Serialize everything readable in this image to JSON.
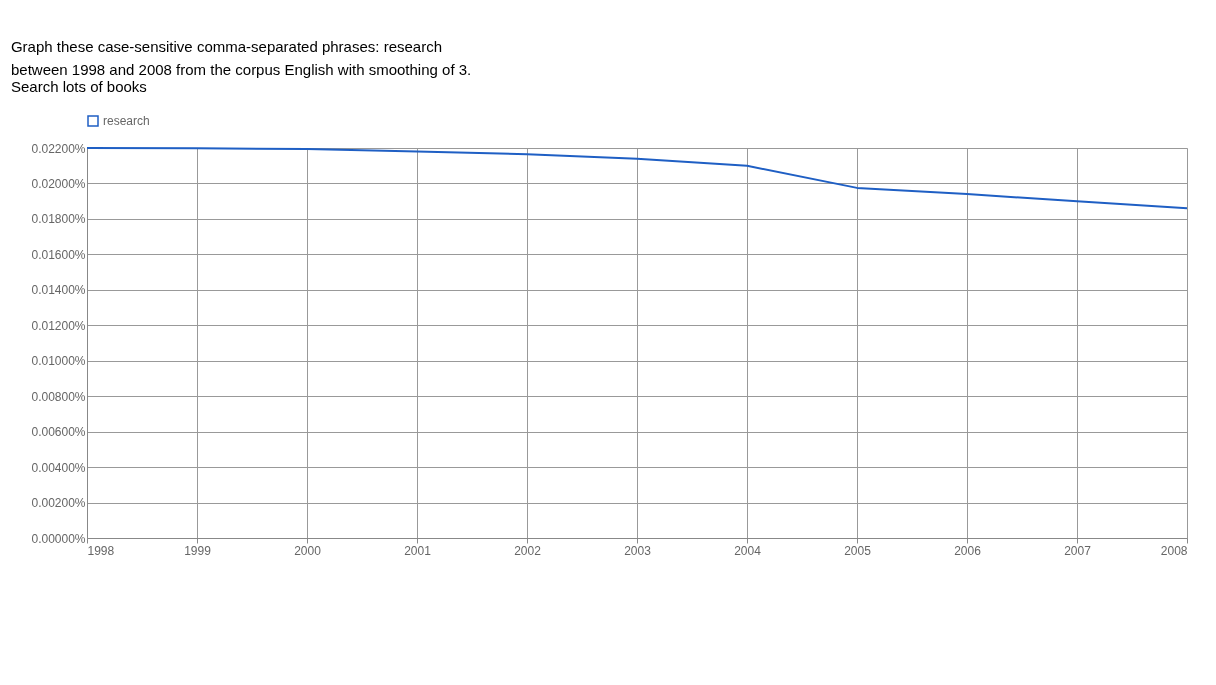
{
  "chart_data": {
    "type": "line",
    "annotations": [
      "Graph these case-sensitive comma-separated phrases: research",
      "between 1998 and 2008 from the corpus English with smoothing of 3.",
      "Search lots of books"
    ],
    "x": [
      1998,
      1999,
      2000,
      2001,
      2002,
      2003,
      2004,
      2005,
      2006,
      2007,
      2008
    ],
    "series": [
      {
        "name": "research",
        "color": "#1f5fc4",
        "values": [
          0.022,
          0.02198,
          0.02195,
          0.0218,
          0.02165,
          0.0214,
          0.021,
          0.01975,
          0.0194,
          0.019,
          0.0186
        ]
      }
    ],
    "xlim": [
      1998,
      2008
    ],
    "xticks": [
      1998,
      1999,
      2000,
      2001,
      2002,
      2003,
      2004,
      2005,
      2006,
      2007,
      2008
    ],
    "ylim": [
      0,
      0.022
    ],
    "yticks": [
      {
        "value": 0,
        "label": "0.00000%"
      },
      {
        "value": 0.002,
        "label": "0.00200%"
      },
      {
        "value": 0.004,
        "label": "0.00400%"
      },
      {
        "value": 0.006,
        "label": "0.00600%"
      },
      {
        "value": 0.008,
        "label": "0.00800%"
      },
      {
        "value": 0.01,
        "label": "0.01000%"
      },
      {
        "value": 0.012,
        "label": "0.01200%"
      },
      {
        "value": 0.014,
        "label": "0.01400%"
      },
      {
        "value": 0.016,
        "label": "0.01600%"
      },
      {
        "value": 0.018,
        "label": "0.01800%"
      },
      {
        "value": 0.02,
        "label": "0.02000%"
      },
      {
        "value": 0.022,
        "label": "0.02200%"
      }
    ],
    "grid": true,
    "legend": "top",
    "marker": "none",
    "line_style": "solid"
  }
}
